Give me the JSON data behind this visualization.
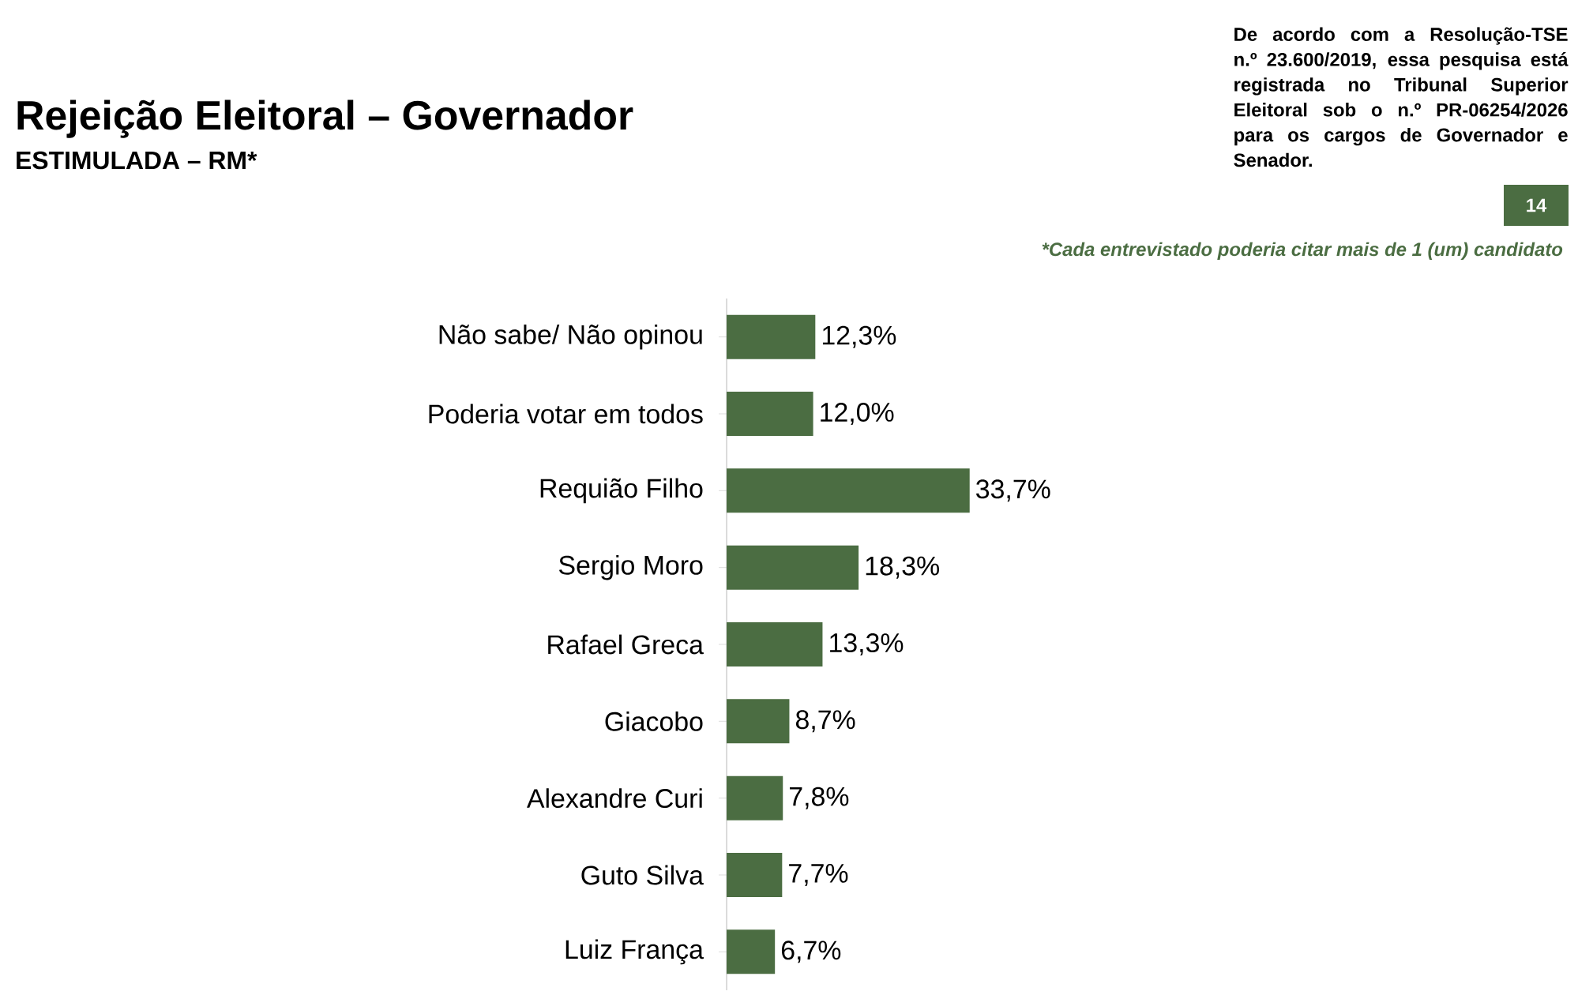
{
  "chart_data": {
    "type": "bar",
    "orientation": "horizontal",
    "title": "Rejeição Eleitoral – Governador",
    "subtitle": "ESTIMULADA – RM*",
    "categories": [
      "Não sabe/ Não opinou",
      "Poderia votar em todos",
      "Requião Filho",
      "Sergio Moro",
      "Rafael Greca",
      "Giacobo",
      "Alexandre Curi",
      "Guto Silva",
      "Luiz França"
    ],
    "values": [
      12.3,
      12.0,
      33.7,
      18.3,
      13.3,
      8.7,
      7.8,
      7.7,
      6.7
    ],
    "value_labels": [
      "12,3%",
      "12,0%",
      "33,7%",
      "18,3%",
      "13,3%",
      "8,7%",
      "7,8%",
      "7,7%",
      "6,7%"
    ],
    "color": "#4b6d42",
    "annotations": [
      "De acordo com a Resolução-TSE n.º 23.600/2019, essa pesquisa está registrada no Tribunal Superior Eleitoral sob o n.º PR-06254/2026 para os cargos de Governador e Senador.",
      "14",
      "*Cada entrevistado poderia citar mais de 1 (um) candidato"
    ]
  }
}
